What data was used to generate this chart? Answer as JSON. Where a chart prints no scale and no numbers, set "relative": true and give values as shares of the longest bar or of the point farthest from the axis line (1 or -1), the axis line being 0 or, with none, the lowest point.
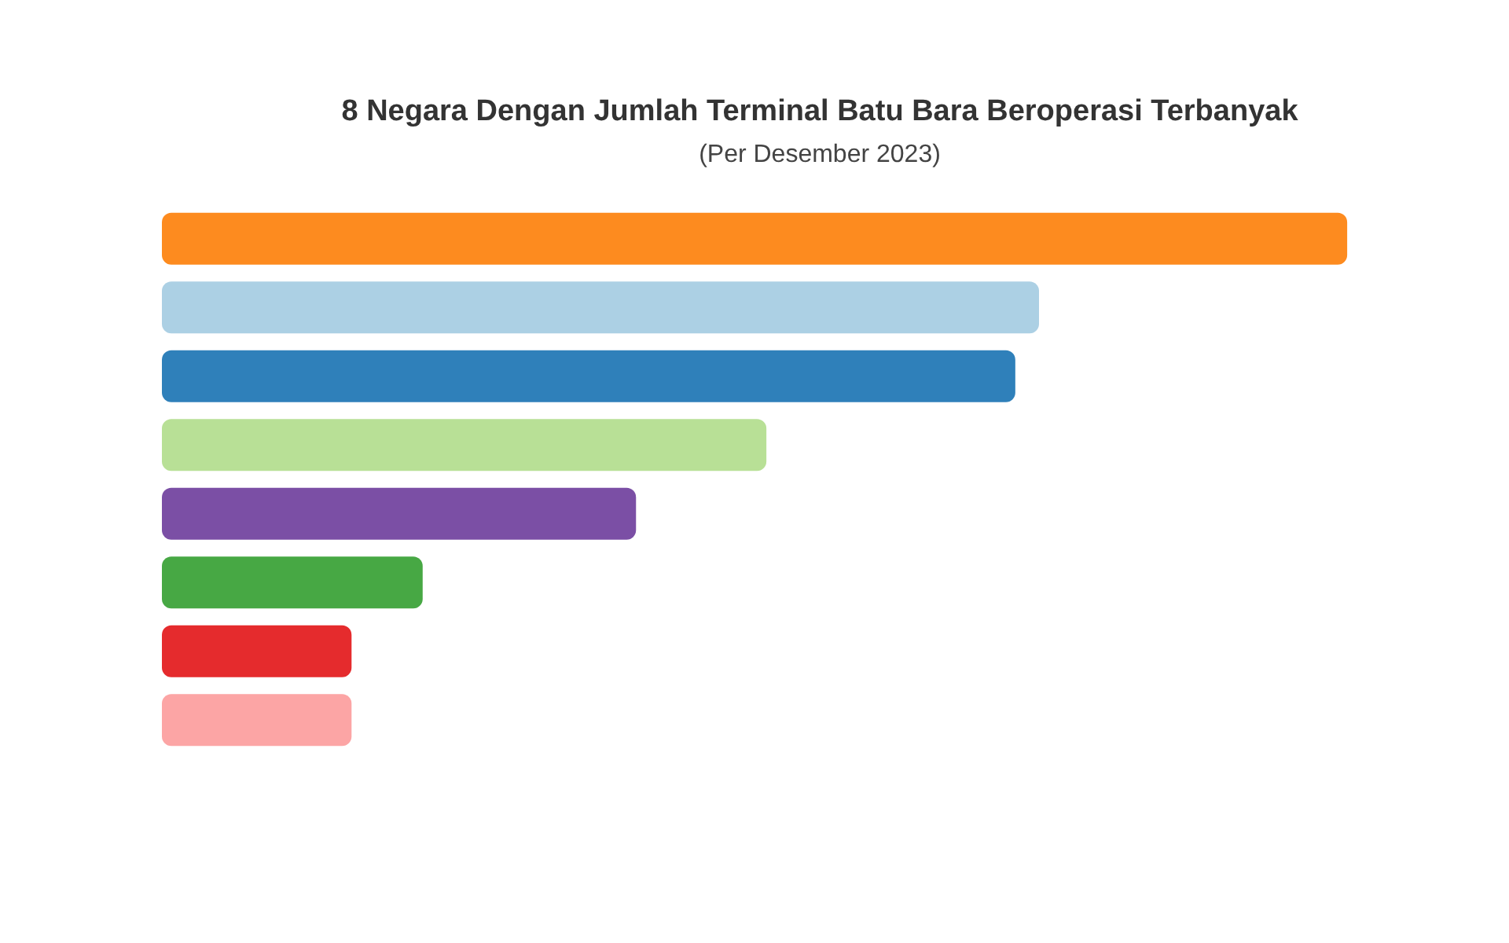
{
  "chart_data": {
    "type": "bar",
    "title": "8 Negara Dengan Jumlah Terminal Batu Bara Beroperasi Terbanyak",
    "subtitle": "(Per Desember 2023)",
    "orientation": "horizontal",
    "relative": true,
    "categories": [
      null,
      null,
      null,
      null,
      null,
      null,
      null,
      null
    ],
    "values": [
      1,
      0.74,
      0.72,
      0.51,
      0.4,
      0.22,
      0.16,
      0.16
    ],
    "colors": [
      "#fd8b1f",
      "#acd0e4",
      "#2f80ba",
      "#b8e096",
      "#7b4fa5",
      "#47a844",
      "#e52b2d",
      "#fca5a5"
    ]
  }
}
